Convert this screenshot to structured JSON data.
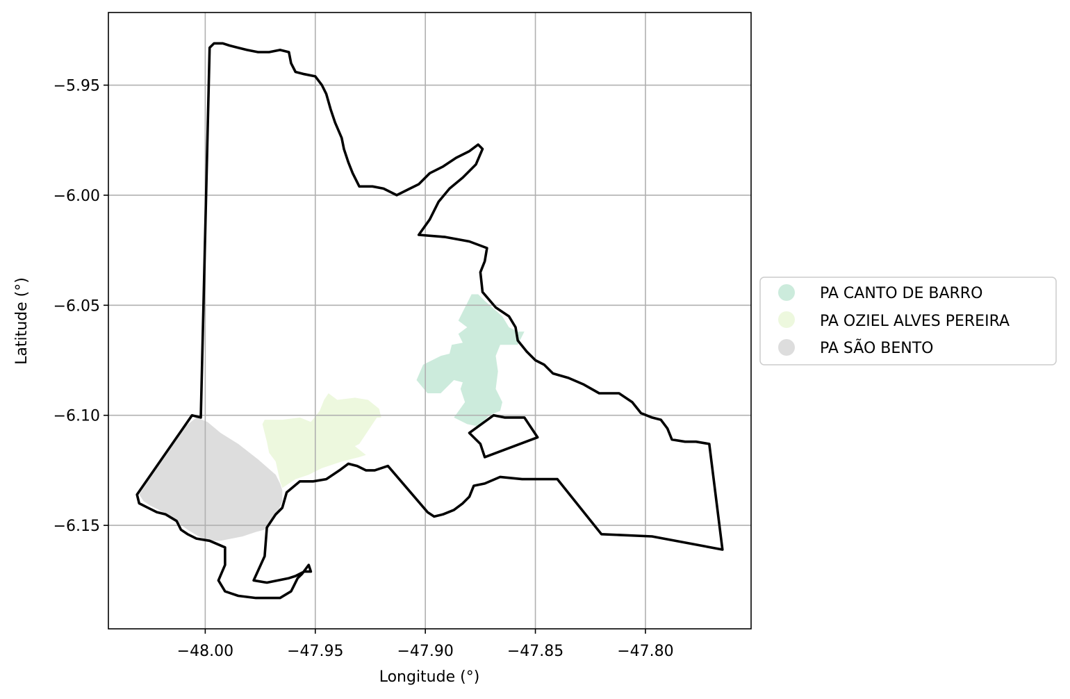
{
  "chart_data": {
    "type": "map",
    "xlabel": "Longitude (°)",
    "ylabel": "Latitude (°)",
    "xlim": [
      -48.044,
      -47.752
    ],
    "ylim": [
      -6.197,
      -5.917
    ],
    "xticks": [
      -48.0,
      -47.95,
      -47.9,
      -47.85,
      -47.8
    ],
    "xtick_labels": [
      "−48.00",
      "−47.95",
      "−47.90",
      "−47.85",
      "−47.80"
    ],
    "yticks": [
      -5.95,
      -6.0,
      -6.05,
      -6.1,
      -6.15
    ],
    "ytick_labels": [
      "−5.95",
      "−6.00",
      "−6.05",
      "−6.10",
      "−6.15"
    ],
    "grid": true,
    "legend_placement": "right, outside plot",
    "series": [
      {
        "name": "PA CANTO DE BARRO",
        "color": "#ccebdc",
        "polygon": [
          [
            -47.879,
            -6.045
          ],
          [
            -47.876,
            -6.045
          ],
          [
            -47.873,
            -6.048
          ],
          [
            -47.865,
            -6.055
          ],
          [
            -47.862,
            -6.06
          ],
          [
            -47.858,
            -6.062
          ],
          [
            -47.855,
            -6.062
          ],
          [
            -47.858,
            -6.068
          ],
          [
            -47.866,
            -6.068
          ],
          [
            -47.868,
            -6.073
          ],
          [
            -47.867,
            -6.08
          ],
          [
            -47.868,
            -6.088
          ],
          [
            -47.865,
            -6.094
          ],
          [
            -47.866,
            -6.098
          ],
          [
            -47.871,
            -6.1
          ],
          [
            -47.876,
            -6.105
          ],
          [
            -47.881,
            -6.104
          ],
          [
            -47.887,
            -6.101
          ],
          [
            -47.882,
            -6.094
          ],
          [
            -47.884,
            -6.088
          ],
          [
            -47.883,
            -6.085
          ],
          [
            -47.887,
            -6.084
          ],
          [
            -47.893,
            -6.09
          ],
          [
            -47.899,
            -6.09
          ],
          [
            -47.904,
            -6.084
          ],
          [
            -47.901,
            -6.077
          ],
          [
            -47.899,
            -6.076
          ],
          [
            -47.893,
            -6.073
          ],
          [
            -47.889,
            -6.072
          ],
          [
            -47.888,
            -6.068
          ],
          [
            -47.883,
            -6.067
          ],
          [
            -47.885,
            -6.063
          ],
          [
            -47.881,
            -6.06
          ],
          [
            -47.885,
            -6.057
          ],
          [
            -47.883,
            -6.053
          ],
          [
            -47.881,
            -6.049
          ]
        ]
      },
      {
        "name": "PA OZIEL ALVES PEREIRA",
        "color": "#edf8de",
        "polygon": [
          [
            -47.944,
            -6.09
          ],
          [
            -47.94,
            -6.093
          ],
          [
            -47.932,
            -6.092
          ],
          [
            -47.926,
            -6.093
          ],
          [
            -47.921,
            -6.097
          ],
          [
            -47.92,
            -6.101
          ],
          [
            -47.922,
            -6.101
          ],
          [
            -47.924,
            -6.104
          ],
          [
            -47.926,
            -6.107
          ],
          [
            -47.93,
            -6.113
          ],
          [
            -47.932,
            -6.114
          ],
          [
            -47.927,
            -6.118
          ],
          [
            -47.93,
            -6.119
          ],
          [
            -47.938,
            -6.121
          ],
          [
            -47.947,
            -6.124
          ],
          [
            -47.953,
            -6.127
          ],
          [
            -47.959,
            -6.129
          ],
          [
            -47.962,
            -6.131
          ],
          [
            -47.965,
            -6.133
          ],
          [
            -47.966,
            -6.13
          ],
          [
            -47.968,
            -6.121
          ],
          [
            -47.971,
            -6.117
          ],
          [
            -47.972,
            -6.112
          ],
          [
            -47.973,
            -6.108
          ],
          [
            -47.974,
            -6.104
          ],
          [
            -47.973,
            -6.102
          ],
          [
            -47.965,
            -6.102
          ],
          [
            -47.957,
            -6.101
          ],
          [
            -47.952,
            -6.103
          ],
          [
            -47.948,
            -6.098
          ],
          [
            -47.946,
            -6.093
          ]
        ]
      },
      {
        "name": "PA SÃO BENTO",
        "color": "#dddddd",
        "polygon": [
          [
            -48.004,
            -6.101
          ],
          [
            -47.999,
            -6.103
          ],
          [
            -47.993,
            -6.108
          ],
          [
            -47.985,
            -6.113
          ],
          [
            -47.976,
            -6.12
          ],
          [
            -47.968,
            -6.127
          ],
          [
            -47.966,
            -6.131
          ],
          [
            -47.965,
            -6.134
          ],
          [
            -47.965,
            -6.139
          ],
          [
            -47.967,
            -6.144
          ],
          [
            -47.97,
            -6.148
          ],
          [
            -47.973,
            -6.152
          ],
          [
            -47.977,
            -6.153
          ],
          [
            -47.983,
            -6.155
          ],
          [
            -47.988,
            -6.156
          ],
          [
            -47.993,
            -6.157
          ],
          [
            -47.998,
            -6.157
          ],
          [
            -48.003,
            -6.155
          ],
          [
            -48.008,
            -6.152
          ],
          [
            -48.012,
            -6.149
          ],
          [
            -48.016,
            -6.146
          ],
          [
            -48.021,
            -6.143
          ],
          [
            -48.025,
            -6.141
          ],
          [
            -48.028,
            -6.139
          ],
          [
            -48.03,
            -6.136
          ],
          [
            -48.024,
            -6.127
          ],
          [
            -48.017,
            -6.117
          ],
          [
            -48.009,
            -6.105
          ]
        ]
      }
    ],
    "outline_polygons": [
      [
        [
          -47.998,
          -5.933
        ],
        [
          -47.996,
          -5.931
        ],
        [
          -47.992,
          -5.931
        ],
        [
          -47.989,
          -5.932
        ],
        [
          -47.985,
          -5.933
        ],
        [
          -47.981,
          -5.934
        ],
        [
          -47.976,
          -5.935
        ],
        [
          -47.971,
          -5.935
        ],
        [
          -47.966,
          -5.934
        ],
        [
          -47.962,
          -5.935
        ],
        [
          -47.961,
          -5.94
        ],
        [
          -47.959,
          -5.944
        ],
        [
          -47.955,
          -5.945
        ],
        [
          -47.95,
          -5.946
        ],
        [
          -47.947,
          -5.95
        ],
        [
          -47.945,
          -5.954
        ],
        [
          -47.943,
          -5.961
        ],
        [
          -47.941,
          -5.967
        ],
        [
          -47.938,
          -5.974
        ],
        [
          -47.937,
          -5.979
        ],
        [
          -47.935,
          -5.985
        ],
        [
          -47.933,
          -5.99
        ],
        [
          -47.93,
          -5.996
        ],
        [
          -47.924,
          -5.996
        ],
        [
          -47.919,
          -5.997
        ],
        [
          -47.913,
          -6.0
        ],
        [
          -47.907,
          -5.997
        ],
        [
          -47.903,
          -5.995
        ],
        [
          -47.898,
          -5.99
        ],
        [
          -47.892,
          -5.987
        ],
        [
          -47.886,
          -5.983
        ],
        [
          -47.88,
          -5.98
        ],
        [
          -47.876,
          -5.977
        ],
        [
          -47.874,
          -5.979
        ],
        [
          -47.877,
          -5.986
        ],
        [
          -47.883,
          -5.992
        ],
        [
          -47.889,
          -5.997
        ],
        [
          -47.894,
          -6.003
        ],
        [
          -47.898,
          -6.011
        ],
        [
          -47.903,
          -6.018
        ],
        [
          -47.891,
          -6.019
        ],
        [
          -47.88,
          -6.021
        ],
        [
          -47.872,
          -6.024
        ],
        [
          -47.873,
          -6.03
        ],
        [
          -47.875,
          -6.035
        ],
        [
          -47.874,
          -6.044
        ],
        [
          -47.868,
          -6.051
        ],
        [
          -47.862,
          -6.055
        ],
        [
          -47.859,
          -6.06
        ],
        [
          -47.858,
          -6.066
        ],
        [
          -47.854,
          -6.071
        ],
        [
          -47.85,
          -6.075
        ],
        [
          -47.846,
          -6.077
        ],
        [
          -47.842,
          -6.081
        ],
        [
          -47.835,
          -6.083
        ],
        [
          -47.828,
          -6.086
        ],
        [
          -47.821,
          -6.09
        ],
        [
          -47.812,
          -6.09
        ],
        [
          -47.806,
          -6.094
        ],
        [
          -47.802,
          -6.099
        ],
        [
          -47.797,
          -6.101
        ],
        [
          -47.793,
          -6.102
        ],
        [
          -47.79,
          -6.106
        ],
        [
          -47.788,
          -6.111
        ],
        [
          -47.782,
          -6.112
        ],
        [
          -47.777,
          -6.112
        ],
        [
          -47.771,
          -6.113
        ],
        [
          -47.765,
          -6.161
        ],
        [
          -47.797,
          -6.155
        ],
        [
          -47.82,
          -6.154
        ],
        [
          -47.84,
          -6.129
        ],
        [
          -47.856,
          -6.129
        ],
        [
          -47.866,
          -6.128
        ],
        [
          -47.873,
          -6.131
        ],
        [
          -47.878,
          -6.132
        ],
        [
          -47.88,
          -6.137
        ],
        [
          -47.883,
          -6.14
        ],
        [
          -47.887,
          -6.143
        ],
        [
          -47.892,
          -6.145
        ],
        [
          -47.896,
          -6.146
        ],
        [
          -47.899,
          -6.144
        ],
        [
          -47.917,
          -6.123
        ],
        [
          -47.923,
          -6.125
        ],
        [
          -47.927,
          -6.125
        ],
        [
          -47.931,
          -6.123
        ],
        [
          -47.935,
          -6.122
        ],
        [
          -47.939,
          -6.125
        ],
        [
          -47.945,
          -6.129
        ],
        [
          -47.951,
          -6.13
        ],
        [
          -47.957,
          -6.13
        ],
        [
          -47.963,
          -6.135
        ],
        [
          -47.965,
          -6.142
        ],
        [
          -47.968,
          -6.145
        ],
        [
          -47.972,
          -6.151
        ],
        [
          -47.973,
          -6.164
        ],
        [
          -47.978,
          -6.175
        ],
        [
          -47.972,
          -6.176
        ],
        [
          -47.962,
          -6.174
        ],
        [
          -47.959,
          -6.173
        ],
        [
          -47.955,
          -6.171
        ],
        [
          -47.952,
          -6.171
        ],
        [
          -47.953,
          -6.168
        ],
        [
          -47.956,
          -6.172
        ],
        [
          -47.958,
          -6.174
        ],
        [
          -47.96,
          -6.178
        ],
        [
          -47.961,
          -6.18
        ],
        [
          -47.966,
          -6.183
        ],
        [
          -47.971,
          -6.183
        ],
        [
          -47.977,
          -6.183
        ],
        [
          -47.985,
          -6.182
        ],
        [
          -47.988,
          -6.181
        ],
        [
          -47.991,
          -6.18
        ],
        [
          -47.994,
          -6.175
        ],
        [
          -47.991,
          -6.168
        ],
        [
          -47.991,
          -6.16
        ],
        [
          -47.998,
          -6.157
        ],
        [
          -48.004,
          -6.156
        ],
        [
          -48.008,
          -6.154
        ],
        [
          -48.011,
          -6.152
        ],
        [
          -48.013,
          -6.148
        ],
        [
          -48.018,
          -6.145
        ],
        [
          -48.022,
          -6.144
        ],
        [
          -48.026,
          -6.142
        ],
        [
          -48.03,
          -6.14
        ],
        [
          -48.031,
          -6.136
        ],
        [
          -48.006,
          -6.1
        ],
        [
          -48.002,
          -6.101
        ]
      ],
      [
        [
          -47.88,
          -6.108
        ],
        [
          -47.875,
          -6.113
        ],
        [
          -47.873,
          -6.119
        ],
        [
          -47.849,
          -6.11
        ],
        [
          -47.855,
          -6.101
        ],
        [
          -47.864,
          -6.101
        ],
        [
          -47.869,
          -6.1
        ]
      ]
    ]
  },
  "legend": {
    "items": [
      {
        "label": "PA CANTO DE BARRO",
        "color": "#ccebdc"
      },
      {
        "label": "PA OZIEL ALVES PEREIRA",
        "color": "#edf8de"
      },
      {
        "label": "PA SÃO BENTO",
        "color": "#dddddd"
      }
    ]
  }
}
